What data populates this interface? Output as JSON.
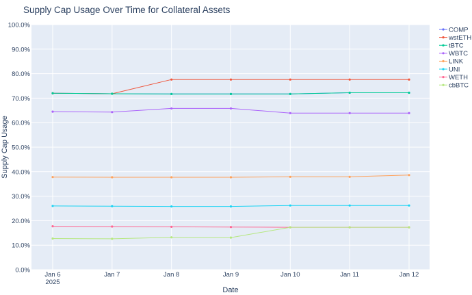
{
  "chart_data": {
    "type": "line",
    "title": "Supply Cap Usage Over Time for Collateral Assets",
    "xlabel": "Date",
    "ylabel": "Supply Cap Usage",
    "x": [
      "Jan 6",
      "Jan 7",
      "Jan 8",
      "Jan 9",
      "Jan 10",
      "Jan 11",
      "Jan 12"
    ],
    "x_sublabel_first": "2025",
    "ylim": [
      0,
      100
    ],
    "y_ticks": [
      0,
      10,
      20,
      30,
      40,
      50,
      60,
      70,
      80,
      90,
      100
    ],
    "y_tick_labels": [
      "0.0%",
      "10.0%",
      "20.0%",
      "30.0%",
      "40.0%",
      "50.0%",
      "60.0%",
      "70.0%",
      "80.0%",
      "90.0%",
      "100.0%"
    ],
    "grid": true,
    "legend_position": "right",
    "series": [
      {
        "name": "COMP",
        "color": "#636efa",
        "values": [
          72.0,
          71.8,
          71.7,
          71.7,
          71.7,
          72.2,
          72.2
        ]
      },
      {
        "name": "wstETH",
        "color": "#ef553b",
        "values": [
          72.0,
          71.8,
          77.6,
          77.6,
          77.6,
          77.6,
          77.6
        ]
      },
      {
        "name": "tBTC",
        "color": "#00cc96",
        "values": [
          72.0,
          71.8,
          71.7,
          71.7,
          71.7,
          72.2,
          72.2
        ]
      },
      {
        "name": "WBTC",
        "color": "#ab63fa",
        "values": [
          64.5,
          64.3,
          65.8,
          65.8,
          63.9,
          63.9,
          63.9
        ]
      },
      {
        "name": "LINK",
        "color": "#ffa15a",
        "values": [
          37.8,
          37.7,
          37.7,
          37.7,
          37.9,
          37.9,
          38.6
        ]
      },
      {
        "name": "UNI",
        "color": "#19d3f3",
        "values": [
          26.0,
          25.9,
          25.8,
          25.8,
          26.2,
          26.2,
          26.2
        ]
      },
      {
        "name": "WETH",
        "color": "#ff6692",
        "values": [
          17.7,
          17.6,
          17.5,
          17.4,
          17.3,
          17.3,
          17.3
        ]
      },
      {
        "name": "cbBTC",
        "color": "#b6e880",
        "values": [
          12.7,
          12.6,
          13.2,
          13.1,
          17.3,
          17.3,
          17.3
        ]
      }
    ]
  }
}
